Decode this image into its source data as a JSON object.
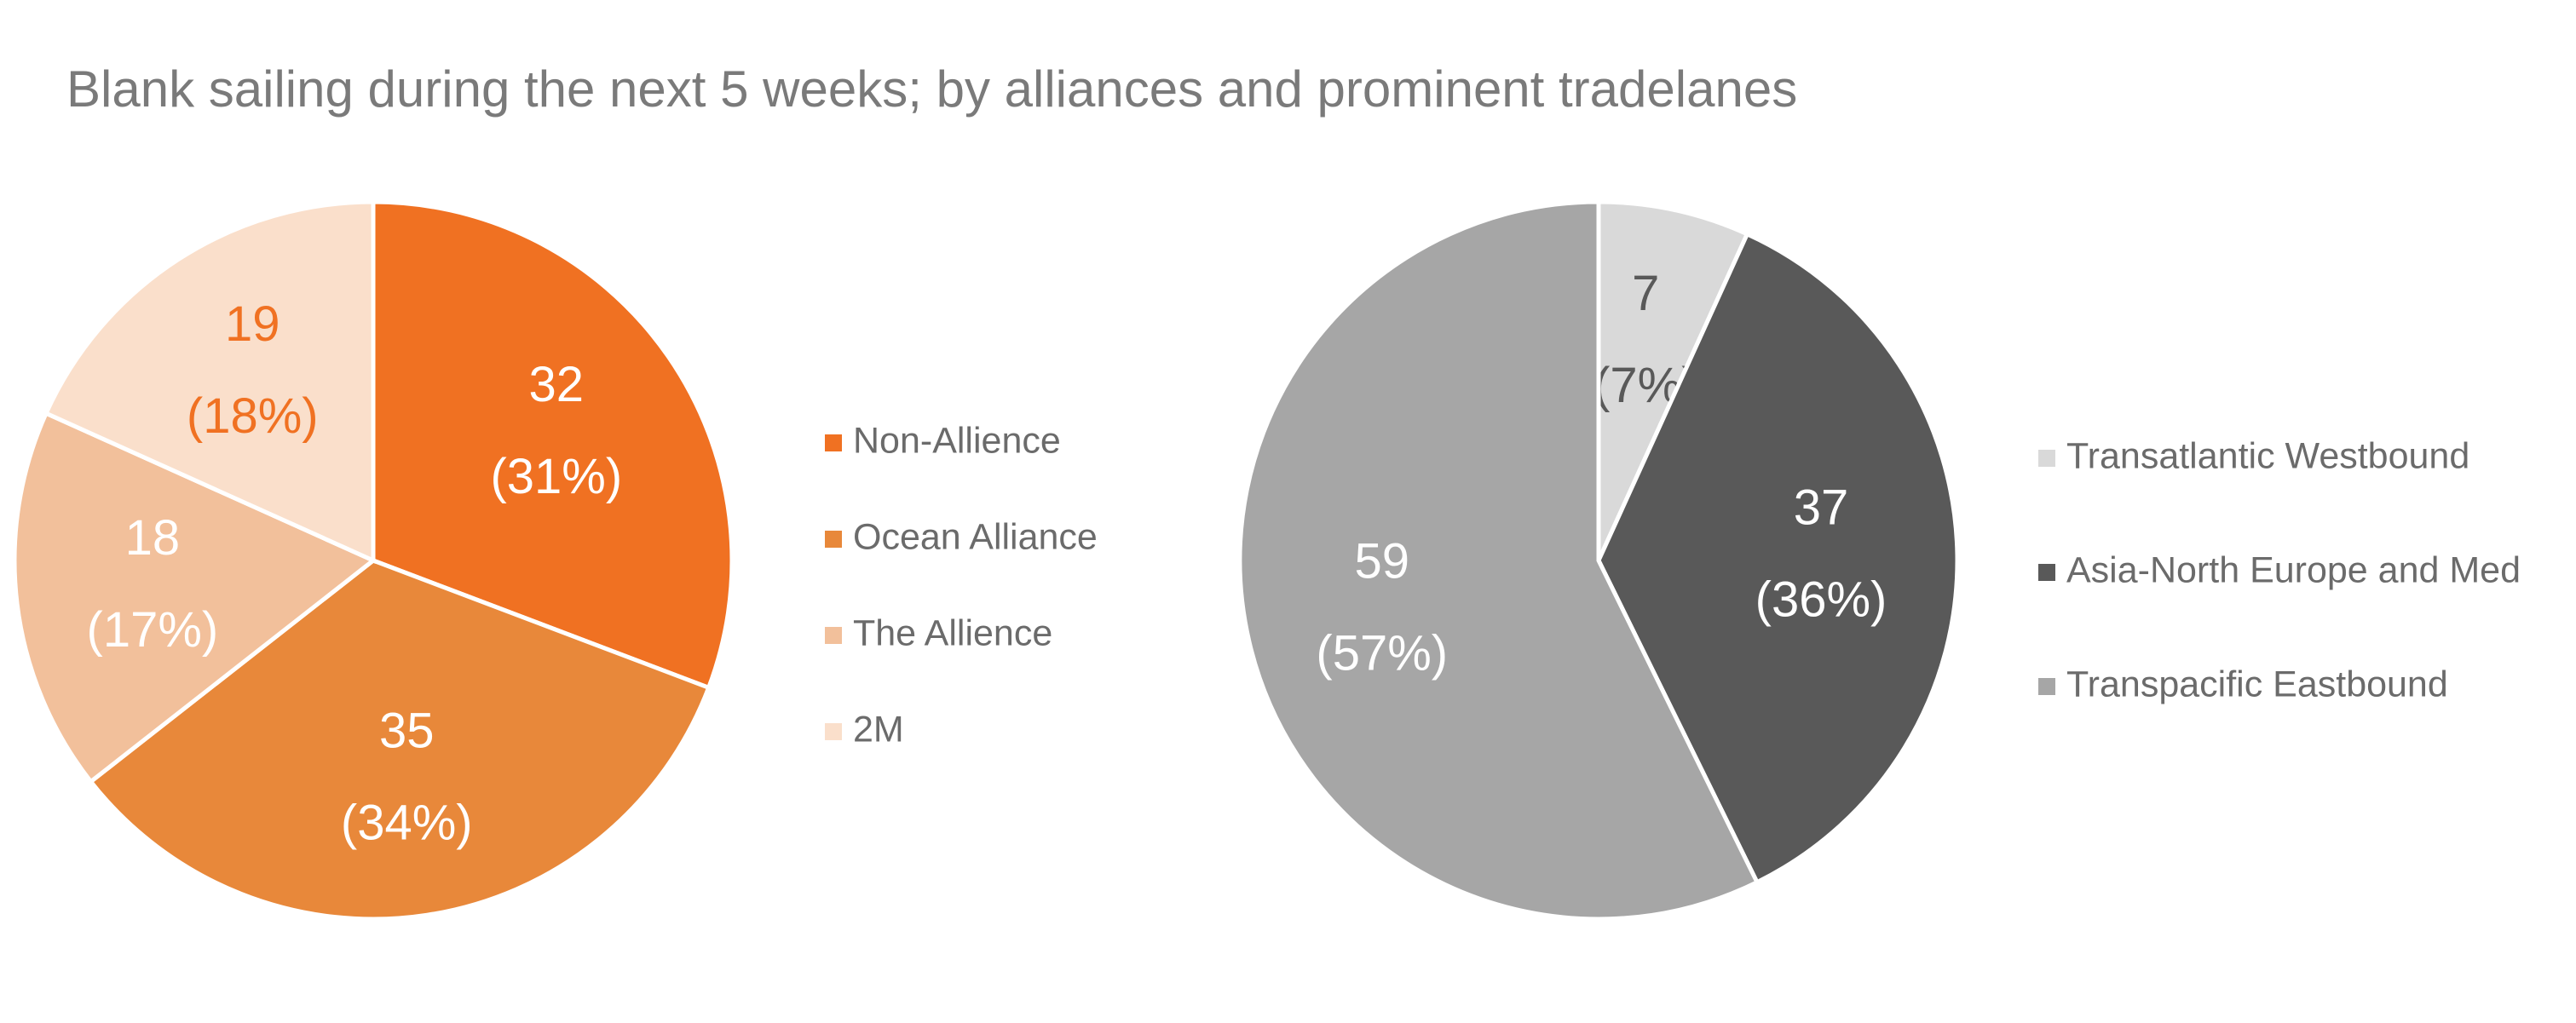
{
  "title": "Blank sailing during the next 5 weeks; by alliances and prominent tradelanes",
  "chart_data": [
    {
      "type": "pie",
      "categories": [
        "Non-Allience",
        "Ocean Alliance",
        "The Allience",
        "2M"
      ],
      "values": [
        32,
        35,
        18,
        19
      ],
      "percents": [
        31,
        34,
        17,
        18
      ],
      "percent_labels": [
        "(31%)",
        "(34%)",
        "(17%)",
        "(18%)"
      ],
      "colors": [
        "#f07122",
        "#e8883a",
        "#f2c09b",
        "#fadfcb"
      ],
      "label_colors": [
        "#ffffff",
        "#ffffff",
        "#ffffff",
        "#f07122"
      ],
      "legend": "right"
    },
    {
      "type": "pie",
      "categories": [
        "Transatlantic Westbound",
        "Asia-North Europe and Med",
        "Transpacific Eastbound"
      ],
      "values": [
        7,
        37,
        59
      ],
      "percents": [
        7,
        36,
        57
      ],
      "percent_labels": [
        "(7%)",
        "(36%)",
        "(57%)"
      ],
      "colors": [
        "#d9d9d9",
        "#595959",
        "#a6a6a6"
      ],
      "label_colors": [
        "#595959",
        "#ffffff",
        "#ffffff"
      ],
      "legend": "right"
    }
  ]
}
